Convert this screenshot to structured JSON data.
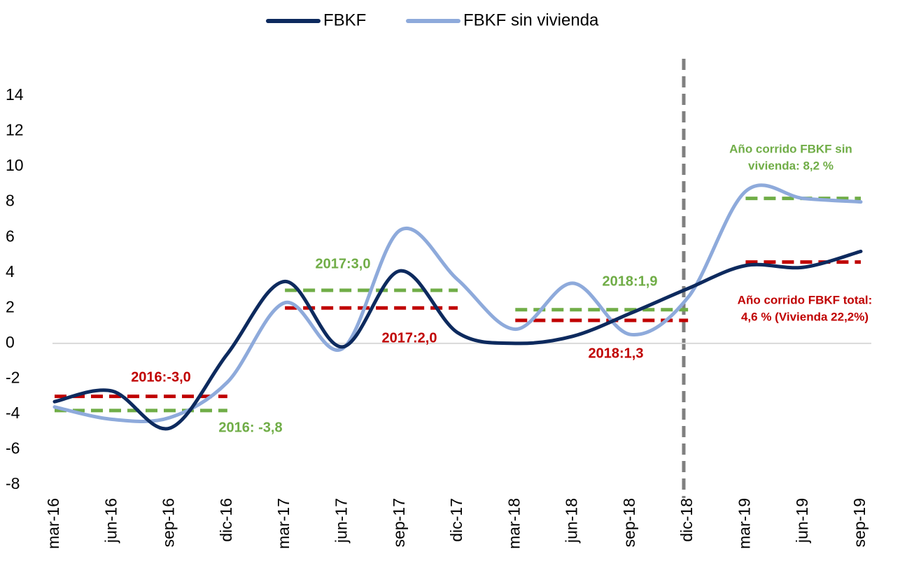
{
  "chart_data": {
    "type": "line",
    "categories": [
      "mar-16",
      "jun-16",
      "sep-16",
      "dic-16",
      "mar-17",
      "jun-17",
      "sep-17",
      "dic-17",
      "mar-18",
      "jun-18",
      "sep-18",
      "dic-18",
      "mar-19",
      "jun-19",
      "sep-19"
    ],
    "series": [
      {
        "name": "FBKF",
        "color": "#0d2a5e",
        "values": [
          -3.3,
          -2.7,
          -4.8,
          -0.6,
          3.5,
          -0.2,
          4.1,
          0.6,
          0.0,
          0.4,
          1.7,
          3.1,
          4.4,
          4.3,
          5.2
        ]
      },
      {
        "name": "FBKF sin vivienda",
        "color": "#8eaadb",
        "values": [
          -3.6,
          -4.3,
          -4.2,
          -2.2,
          2.3,
          -0.3,
          6.4,
          3.6,
          0.8,
          3.4,
          0.5,
          2.6,
          8.6,
          8.2,
          8.0
        ]
      }
    ],
    "averages": [
      {
        "value": -3.0,
        "color": "#c00000",
        "from": "mar-16",
        "to": "dic-16",
        "label": [
          "2016:-3,0"
        ]
      },
      {
        "value": -3.8,
        "color": "#70ad47",
        "from": "mar-16",
        "to": "dic-16",
        "label": [
          "2016: -3,8"
        ]
      },
      {
        "value": 3.0,
        "color": "#70ad47",
        "from": "mar-17",
        "to": "dic-17",
        "label": [
          "2017:3,0"
        ]
      },
      {
        "value": 2.0,
        "color": "#c00000",
        "from": "mar-17",
        "to": "dic-17",
        "label": [
          "2017:2,0"
        ]
      },
      {
        "value": 1.9,
        "color": "#70ad47",
        "from": "mar-18",
        "to": "dic-18",
        "label": [
          "2018:1,9"
        ]
      },
      {
        "value": 1.3,
        "color": "#c00000",
        "from": "mar-18",
        "to": "dic-18",
        "label": [
          "2018:1,3"
        ]
      },
      {
        "value": 8.2,
        "color": "#70ad47",
        "from": "mar-19",
        "to": "sep-19",
        "label": [
          "Año  corrido FBKF sin",
          "vivienda: 8,2 %"
        ]
      },
      {
        "value": 4.6,
        "color": "#c00000",
        "from": "mar-19",
        "to": "sep-19",
        "label": [
          "Año  corrido FBKF total:",
          "4,6 % (Vivienda 22,2%)"
        ]
      }
    ],
    "ylim": [
      -8,
      14
    ],
    "yticks": [
      -8,
      -6,
      -4,
      -2,
      0,
      2,
      4,
      6,
      8,
      10,
      12,
      14
    ],
    "legend": "top"
  }
}
